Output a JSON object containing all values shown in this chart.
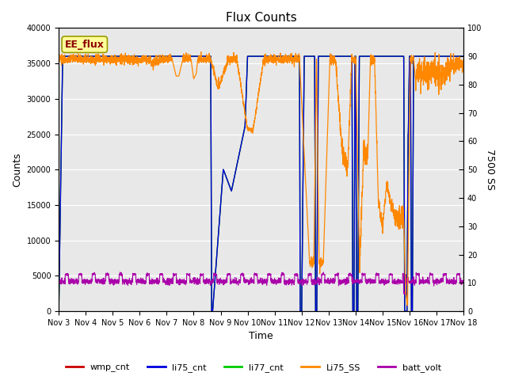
{
  "title": "Flux Counts",
  "xlabel": "Time",
  "ylabel_left": "Counts",
  "ylabel_right": "7500 SS",
  "ylim_left": [
    0,
    40000
  ],
  "ylim_right": [
    0,
    100
  ],
  "plot_bg": "#e8e8e8",
  "fig_bg": "#ffffff",
  "annotation_text": "EE_flux",
  "annotation_box_facecolor": "#ffff99",
  "annotation_box_edgecolor": "#999900",
  "x_tick_labels": [
    "Nov 3",
    "Nov 4",
    "Nov 5",
    "Nov 6",
    "Nov 7",
    "Nov 8",
    "Nov 9",
    "Nov 10",
    "Nov 11",
    "Nov 12",
    "Nov 13",
    "Nov 14",
    "Nov 15",
    "Nov 16",
    "Nov 17",
    "Nov 18"
  ],
  "wmp_color": "#cc0000",
  "li75_color": "#0000dd",
  "li77_color": "#00cc00",
  "li75ss_color": "#ff8800",
  "batt_color": "#aa00aa",
  "legend_labels": [
    "wmp_cnt",
    "li75_cnt",
    "li77_cnt",
    "Li75_SS",
    "batt_volt"
  ],
  "legend_colors": [
    "#cc0000",
    "#0000dd",
    "#00cc00",
    "#ff8800",
    "#aa00aa"
  ],
  "title_fontsize": 11,
  "axis_label_fontsize": 9,
  "tick_fontsize": 7,
  "legend_fontsize": 8
}
